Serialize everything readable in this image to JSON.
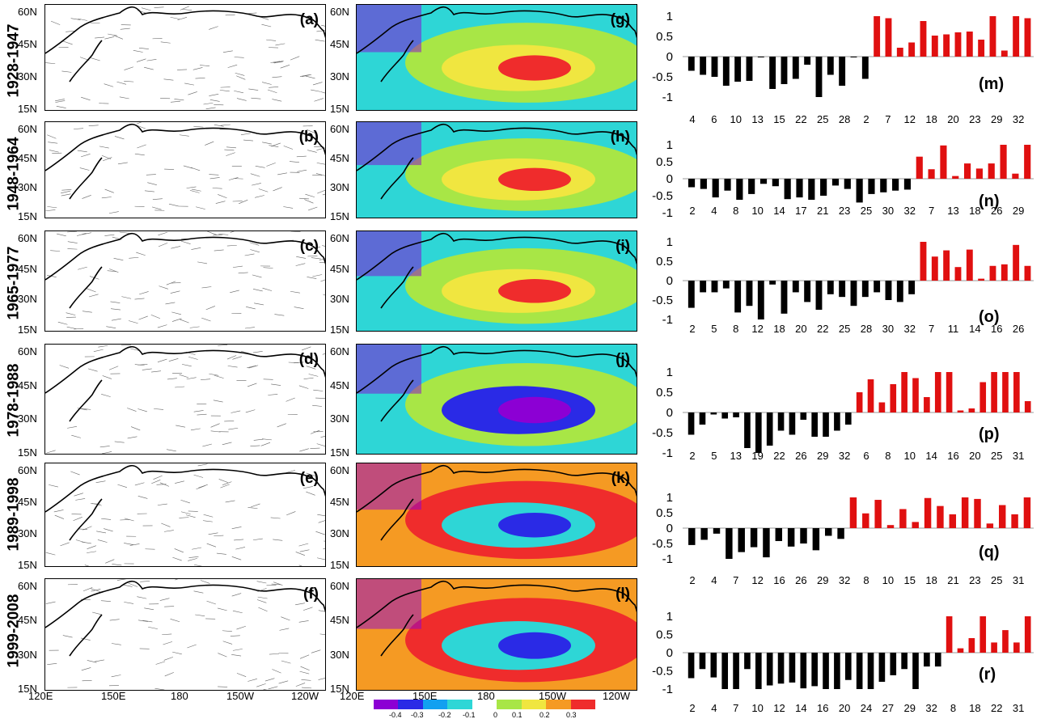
{
  "periods": [
    "1928-1947",
    "1948-1964",
    "1965-1977",
    "1978-1988",
    "1989-1998",
    "1999-2008"
  ],
  "wind_labels": [
    "(a)",
    "(b)",
    "(c)",
    "(d)",
    "(e)",
    "(f)"
  ],
  "corr_labels": [
    "(g)",
    "(h)",
    "(i)",
    "(j)",
    "(k)",
    "(l)"
  ],
  "bar_labels": [
    "(m)",
    "(n)",
    "(o)",
    "(p)",
    "(q)",
    "(r)"
  ],
  "lat_ticks": [
    "60N",
    "45N",
    "30N",
    "15N"
  ],
  "lon_ticks": [
    "120E",
    "150E",
    "180",
    "150W",
    "120W"
  ],
  "colorbar": {
    "ticks": [
      "-0.4",
      "-0.3",
      "-0.2",
      "-0.1",
      "0",
      "0.1",
      "0.2",
      "0.3"
    ],
    "colors": [
      "#8c00d4",
      "#2a2ae6",
      "#12a0f0",
      "#2ed6d6",
      "#ffffff",
      "#a8e646",
      "#f0e640",
      "#f59a23",
      "#ef2c2c"
    ]
  },
  "colors": {
    "negative_bar": "#000000",
    "positive_bar": "#e01010",
    "cool": "#2ed6d6",
    "warm": "#ef2c2c"
  },
  "chart_data": [
    {
      "type": "bar",
      "panel": "(m)",
      "ylim": [
        -1,
        1
      ],
      "yticks": [
        "1",
        "0.5",
        "0",
        "-0.5",
        "-1"
      ],
      "xticks": [
        "4",
        "6",
        "10",
        "13",
        "15",
        "22",
        "25",
        "28",
        "2",
        "7",
        "12",
        "18",
        "20",
        "23",
        "29",
        "32"
      ],
      "neg_values": [
        -0.35,
        -0.45,
        -0.5,
        -0.72,
        -0.62,
        -0.6,
        -0.02,
        -0.8,
        -0.68,
        -0.55,
        -0.2,
        -1.0,
        -0.45,
        -0.72,
        -0.02,
        -0.55
      ],
      "pos_values": [
        1.0,
        0.95,
        0.22,
        0.35,
        0.88,
        0.52,
        0.55,
        0.6,
        0.62,
        0.42,
        1.0,
        0.15,
        1.0,
        0.95
      ]
    },
    {
      "type": "bar",
      "panel": "(n)",
      "ylim": [
        -1,
        1
      ],
      "yticks": [
        "1",
        "0.5",
        "0",
        "-0.5",
        "-1"
      ],
      "xticks": [
        "2",
        "4",
        "8",
        "10",
        "14",
        "17",
        "21",
        "23",
        "25",
        "30",
        "32",
        "7",
        "13",
        "18",
        "26",
        "29"
      ],
      "neg_values": [
        -0.25,
        -0.3,
        -0.55,
        -0.35,
        -0.62,
        -0.45,
        -0.15,
        -0.22,
        -0.6,
        -0.55,
        -0.62,
        -0.5,
        -0.2,
        -0.3,
        -0.7,
        -0.45,
        -0.4,
        -0.35,
        -0.32
      ],
      "pos_values": [
        0.65,
        0.28,
        0.98,
        0.08,
        0.45,
        0.3,
        0.45,
        1.0,
        0.15,
        1.0
      ]
    },
    {
      "type": "bar",
      "panel": "(o)",
      "ylim": [
        -1,
        1
      ],
      "yticks": [
        "1",
        "0.5",
        "0",
        "-0.5",
        "-1"
      ],
      "xticks": [
        "2",
        "5",
        "8",
        "12",
        "18",
        "20",
        "22",
        "25",
        "28",
        "30",
        "32",
        "7",
        "11",
        "14",
        "16",
        "26"
      ],
      "neg_values": [
        -0.7,
        -0.3,
        -0.3,
        -0.2,
        -0.82,
        -0.65,
        -1.0,
        -0.1,
        -0.85,
        -0.3,
        -0.55,
        -0.75,
        -0.35,
        -0.42,
        -0.65,
        -0.42,
        -0.3,
        -0.5,
        -0.55,
        -0.35
      ],
      "pos_values": [
        1.0,
        0.62,
        0.78,
        0.35,
        0.8,
        0.05,
        0.38,
        0.42,
        0.92,
        0.38
      ]
    },
    {
      "type": "bar",
      "panel": "(p)",
      "ylim": [
        -1,
        1
      ],
      "yticks": [
        "1",
        "0.5",
        "0",
        "-0.5",
        "-1"
      ],
      "xticks": [
        "2",
        "5",
        "13",
        "19",
        "22",
        "26",
        "29",
        "32",
        "6",
        "8",
        "10",
        "14",
        "16",
        "20",
        "25",
        "31"
      ],
      "neg_values": [
        -0.55,
        -0.3,
        -0.05,
        -0.15,
        -0.12,
        -0.88,
        -1.0,
        -0.82,
        -0.45,
        -0.55,
        -0.18,
        -0.6,
        -0.6,
        -0.45,
        -0.3
      ],
      "pos_values": [
        0.5,
        0.82,
        0.25,
        0.7,
        1.0,
        0.85,
        0.38,
        1.0,
        1.0,
        0.05,
        0.1,
        0.75,
        1.0,
        1.0,
        1.0,
        0.28
      ]
    },
    {
      "type": "bar",
      "panel": "(q)",
      "ylim": [
        -1,
        1
      ],
      "yticks": [
        "1",
        "0.5",
        "0",
        "-0.5",
        "-1"
      ],
      "xticks": [
        "2",
        "4",
        "7",
        "12",
        "16",
        "26",
        "29",
        "32",
        "8",
        "10",
        "15",
        "18",
        "21",
        "23",
        "25",
        "31"
      ],
      "neg_values": [
        -0.55,
        -0.38,
        -0.18,
        -1.0,
        -0.78,
        -0.62,
        -0.95,
        -0.42,
        -0.6,
        -0.5,
        -0.72,
        -0.25,
        -0.35
      ],
      "pos_values": [
        1.0,
        0.48,
        0.92,
        0.1,
        0.62,
        0.2,
        0.98,
        0.72,
        0.45,
        1.0,
        0.95,
        0.15,
        0.75,
        0.45,
        1.0
      ]
    },
    {
      "type": "bar",
      "panel": "(r)",
      "ylim": [
        -1,
        1
      ],
      "yticks": [
        "1",
        "0.5",
        "0",
        "-0.5",
        "-1"
      ],
      "xticks": [
        "2",
        "4",
        "7",
        "10",
        "12",
        "14",
        "16",
        "20",
        "24",
        "27",
        "29",
        "32",
        "8",
        "18",
        "22",
        "31"
      ],
      "neg_values": [
        -0.7,
        -0.45,
        -0.68,
        -1.0,
        -1.0,
        -0.45,
        -1.0,
        -0.9,
        -0.85,
        -0.82,
        -0.98,
        -0.92,
        -1.0,
        -1.0,
        -0.75,
        -1.0,
        -1.0,
        -0.8,
        -0.62,
        -0.45,
        -1.0,
        -0.38,
        -0.38
      ],
      "pos_values": [
        1.0,
        0.12,
        0.4,
        1.0,
        0.28,
        0.62,
        0.28,
        1.0
      ]
    }
  ]
}
